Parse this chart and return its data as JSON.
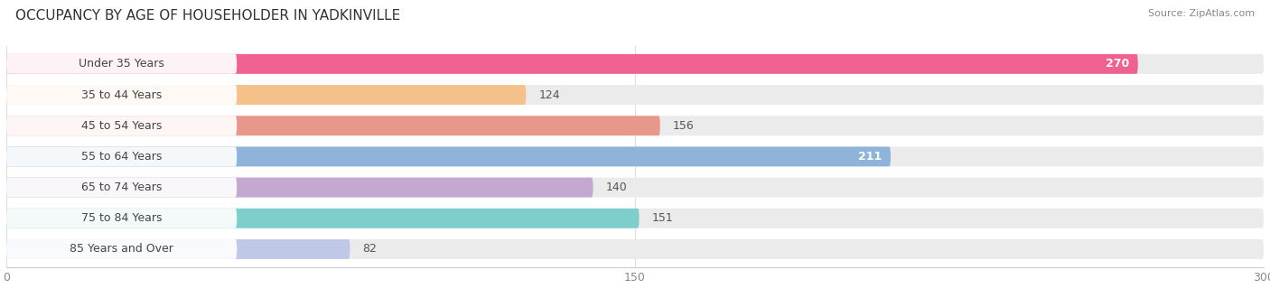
{
  "title": "OCCUPANCY BY AGE OF HOUSEHOLDER IN YADKINVILLE",
  "source": "Source: ZipAtlas.com",
  "categories": [
    "Under 35 Years",
    "35 to 44 Years",
    "45 to 54 Years",
    "55 to 64 Years",
    "65 to 74 Years",
    "75 to 84 Years",
    "85 Years and Over"
  ],
  "values": [
    270,
    124,
    156,
    211,
    140,
    151,
    82
  ],
  "bar_colors": [
    "#F06090",
    "#F5C18A",
    "#E8988A",
    "#8EB4DA",
    "#C4A8D0",
    "#7ECECE",
    "#C0C8E8"
  ],
  "bar_bg_color": "#EBEBEB",
  "label_bg_color": "#FFFFFF",
  "xlim": [
    0,
    300
  ],
  "xticks": [
    0,
    150,
    300
  ],
  "title_fontsize": 11,
  "label_fontsize": 9,
  "value_fontsize": 9,
  "background_color": "#FFFFFF",
  "bar_height": 0.72,
  "white_value_threshold": 190
}
